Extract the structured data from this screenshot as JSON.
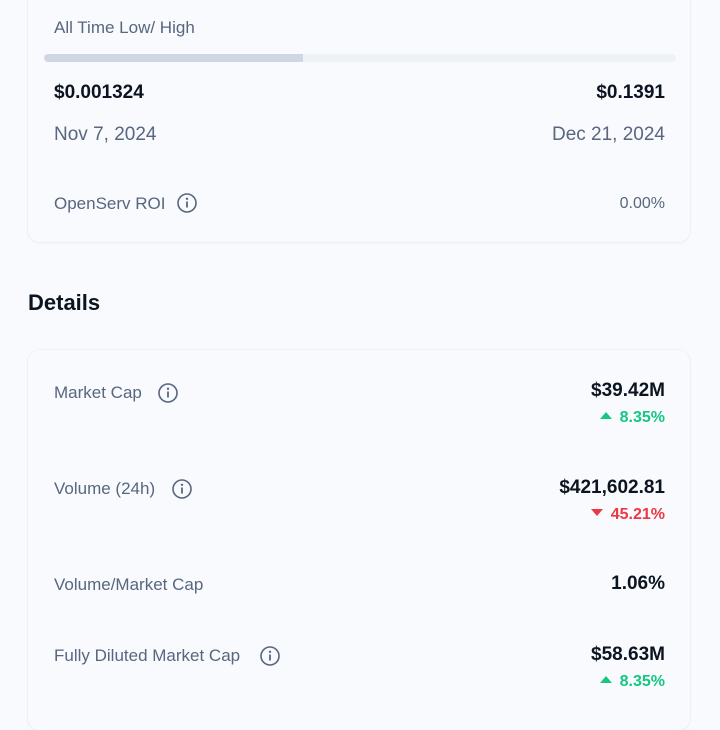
{
  "range": {
    "title": "All Time Low/ High",
    "progress_fraction": 0.41,
    "low_value": "$0.001324",
    "high_value": "$0.1391",
    "low_date": "Nov 7, 2024",
    "high_date": "Dec 21, 2024"
  },
  "roi": {
    "label": "OpenServ ROI",
    "value": "0.00%",
    "icon": "info-icon"
  },
  "details": {
    "heading": "Details",
    "rows": [
      {
        "label": "Market Cap",
        "value": "$39.42M",
        "change": "8.35%",
        "direction": "up",
        "has_info": true
      },
      {
        "label": "Volume (24h)",
        "value": "$421,602.81",
        "change": "45.21%",
        "direction": "down",
        "has_info": true
      },
      {
        "label": "Volume/Market Cap",
        "value": "1.06%",
        "has_info": false
      },
      {
        "label": "Fully Diluted Market Cap",
        "value": "$58.63M",
        "change": "8.35%",
        "direction": "up",
        "has_info": true
      }
    ]
  },
  "colors": {
    "up": "#16c784",
    "down": "#ea3943",
    "muted": "#58667e",
    "text": "#0d1421"
  }
}
